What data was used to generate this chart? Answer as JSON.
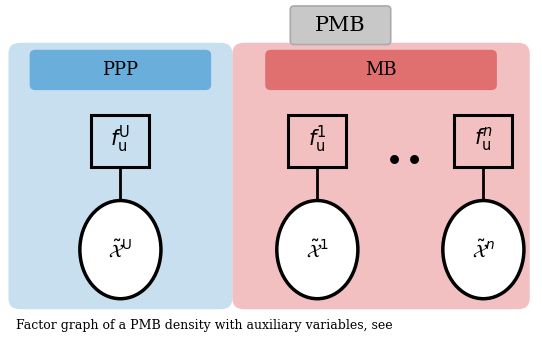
{
  "fig_width": 5.42,
  "fig_height": 3.52,
  "dpi": 100,
  "caption": "Factor graph of a PMB density with auxiliary variables, see",
  "pmb_label": "PMB",
  "pmb_box_facecolor": "#c8c8c8",
  "pmb_box_edgecolor": "#aaaaaa",
  "ppp_label": "PPP",
  "ppp_bg": "#c8dff0",
  "ppp_header_bg": "#6aaedb",
  "mb_label": "MB",
  "mb_bg": "#f2c0c0",
  "mb_header_bg": "#e07070",
  "white": "#ffffff",
  "black": "#000000",
  "gray_bg": "#f0f0f0"
}
